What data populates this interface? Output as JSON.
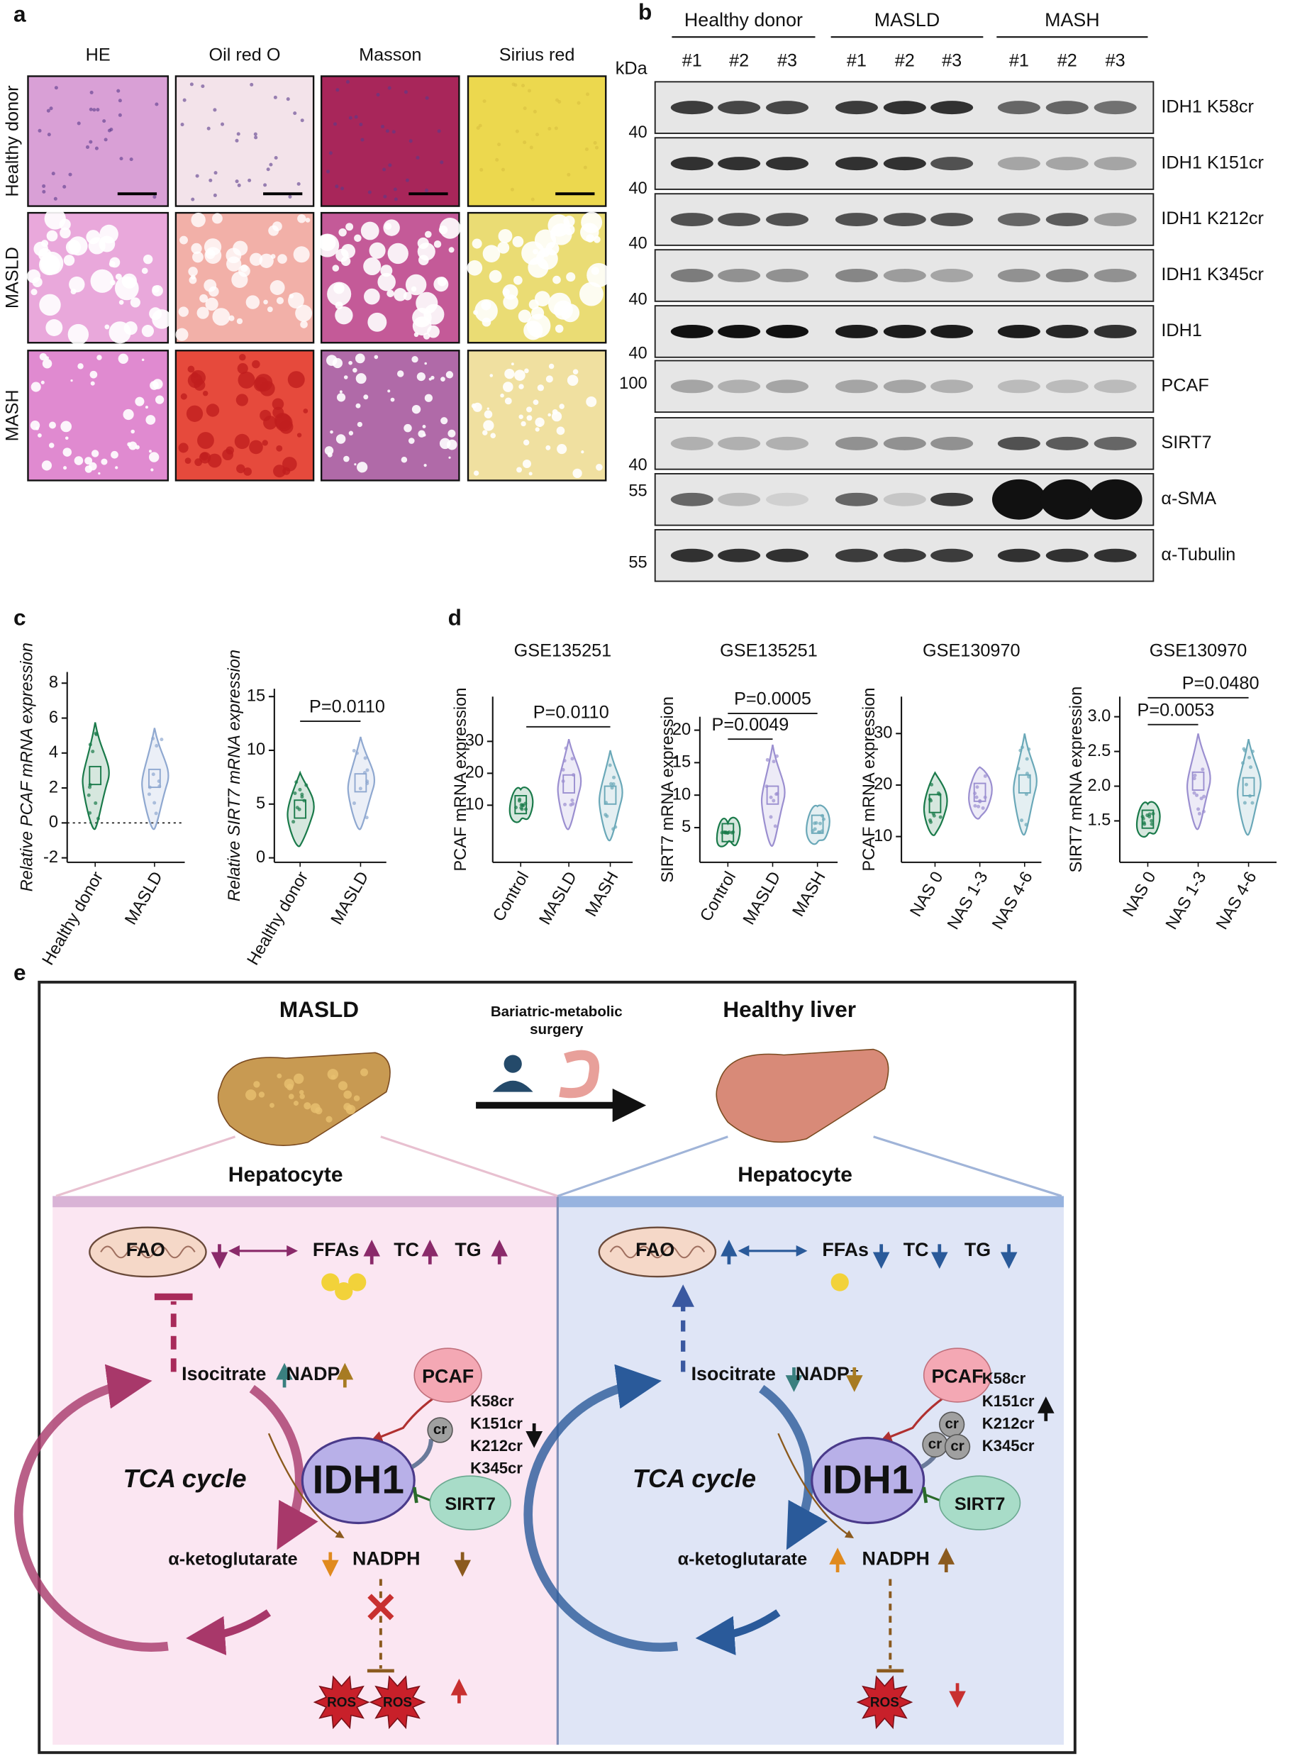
{
  "panel_a": {
    "label": "a",
    "columns": [
      "HE",
      "Oil red O",
      "Masson",
      "Sirius red"
    ],
    "rows": [
      "Healthy donor",
      "MASLD",
      "MASH"
    ]
  },
  "panel_b": {
    "label": "b",
    "groups": [
      "Healthy donor",
      "MASLD",
      "MASH"
    ],
    "lanes": [
      "#1",
      "#2",
      "#3",
      "#1",
      "#2",
      "#3",
      "#1",
      "#2",
      "#3"
    ],
    "unit": "kDa",
    "blots": [
      "IDH1 K58cr",
      "IDH1 K151cr",
      "IDH1 K212cr",
      "IDH1 K345cr",
      "IDH1",
      "PCAF",
      "SIRT7",
      "α-SMA",
      "α-Tubulin"
    ],
    "markers": [
      40,
      40,
      40,
      40,
      40,
      100,
      40,
      55,
      55
    ]
  },
  "panel_c": {
    "label": "c",
    "charts": [
      {
        "ylabel": "Relative PCAF mRNA expression",
        "categories": [
          "Healthy donor",
          "MASLD"
        ],
        "yticks": [
          -2,
          0,
          2,
          4,
          6,
          8
        ]
      },
      {
        "ylabel": "Relative SIRT7 mRNA expression",
        "categories": [
          "Healthy donor",
          "MASLD"
        ],
        "yticks": [
          0,
          5,
          10,
          15
        ],
        "annotations": [
          "P=0.0110"
        ]
      }
    ]
  },
  "panel_d": {
    "label": "d",
    "charts": [
      {
        "title": "GSE135251",
        "ylabel": "PCAF mRNA expression",
        "categories": [
          "Control",
          "MASLD",
          "MASH"
        ],
        "yticks": [
          10,
          20,
          30
        ],
        "annotations": [
          "P=0.0110"
        ]
      },
      {
        "title": "GSE135251",
        "ylabel": "SIRT7 mRNA expression",
        "categories": [
          "Control",
          "MASLD",
          "MASH"
        ],
        "yticks": [
          5,
          10,
          15,
          20
        ],
        "annotations": [
          "P=0.0005",
          "P=0.0049"
        ]
      },
      {
        "title": "GSE130970",
        "ylabel": "PCAF mRNA expression",
        "categories": [
          "NAS 0",
          "NAS 1-3",
          "NAS 4-6"
        ],
        "yticks": [
          10,
          20,
          30
        ]
      },
      {
        "title": "GSE130970",
        "ylabel": "SIRT7 mRNA expression",
        "categories": [
          "NAS 0",
          "NAS 1-3",
          "NAS 4-6"
        ],
        "yticks": [
          1.5,
          {
            "value": 2,
            "label": "2.0"
          },
          2.5,
          {
            "value": 3,
            "label": "3.0"
          }
        ],
        "annotations": [
          "P=0.0480",
          "P=0.0053"
        ]
      }
    ]
  },
  "panel_e": {
    "label": "e",
    "left_title": "MASLD",
    "surgery": [
      "Bariatric-metabolic",
      "surgery"
    ],
    "right_title": "Healthy liver",
    "left": {
      "cell": "Hepatocyte",
      "fao": "FAO",
      "ffas": "FFAs",
      "tc": "TC",
      "tg": "TG",
      "isocitrate": "Isocitrate",
      "nadp": "NADP⁺",
      "pcaf": "PCAF",
      "cr": [
        "cr"
      ],
      "sites": [
        "K58cr",
        "K151cr",
        "K212cr",
        "K345cr"
      ],
      "idh1": "IDH1",
      "sirt7": "SIRT7",
      "cycle": "TCA cycle",
      "akg": "α-ketoglutarate",
      "nadph": "NADPH",
      "ros": [
        "ROS",
        "ROS"
      ]
    },
    "right": {
      "cell": "Hepatocyte",
      "fao": "FAO",
      "ffas": "FFAs",
      "tc": "TC",
      "tg": "TG",
      "isocitrate": "Isocitrate",
      "nadp": "NADP⁺",
      "pcaf": "PCAF",
      "cr": [
        "cr",
        "cr",
        "cr"
      ],
      "sites": [
        "K58cr",
        "K151cr",
        "K212cr",
        "K345cr"
      ],
      "idh1": "IDH1",
      "sirt7": "SIRT7",
      "cycle": "TCA cycle",
      "akg": "α-ketoglutarate",
      "nadph": "NADPH",
      "ros": [
        "ROS"
      ]
    }
  }
}
